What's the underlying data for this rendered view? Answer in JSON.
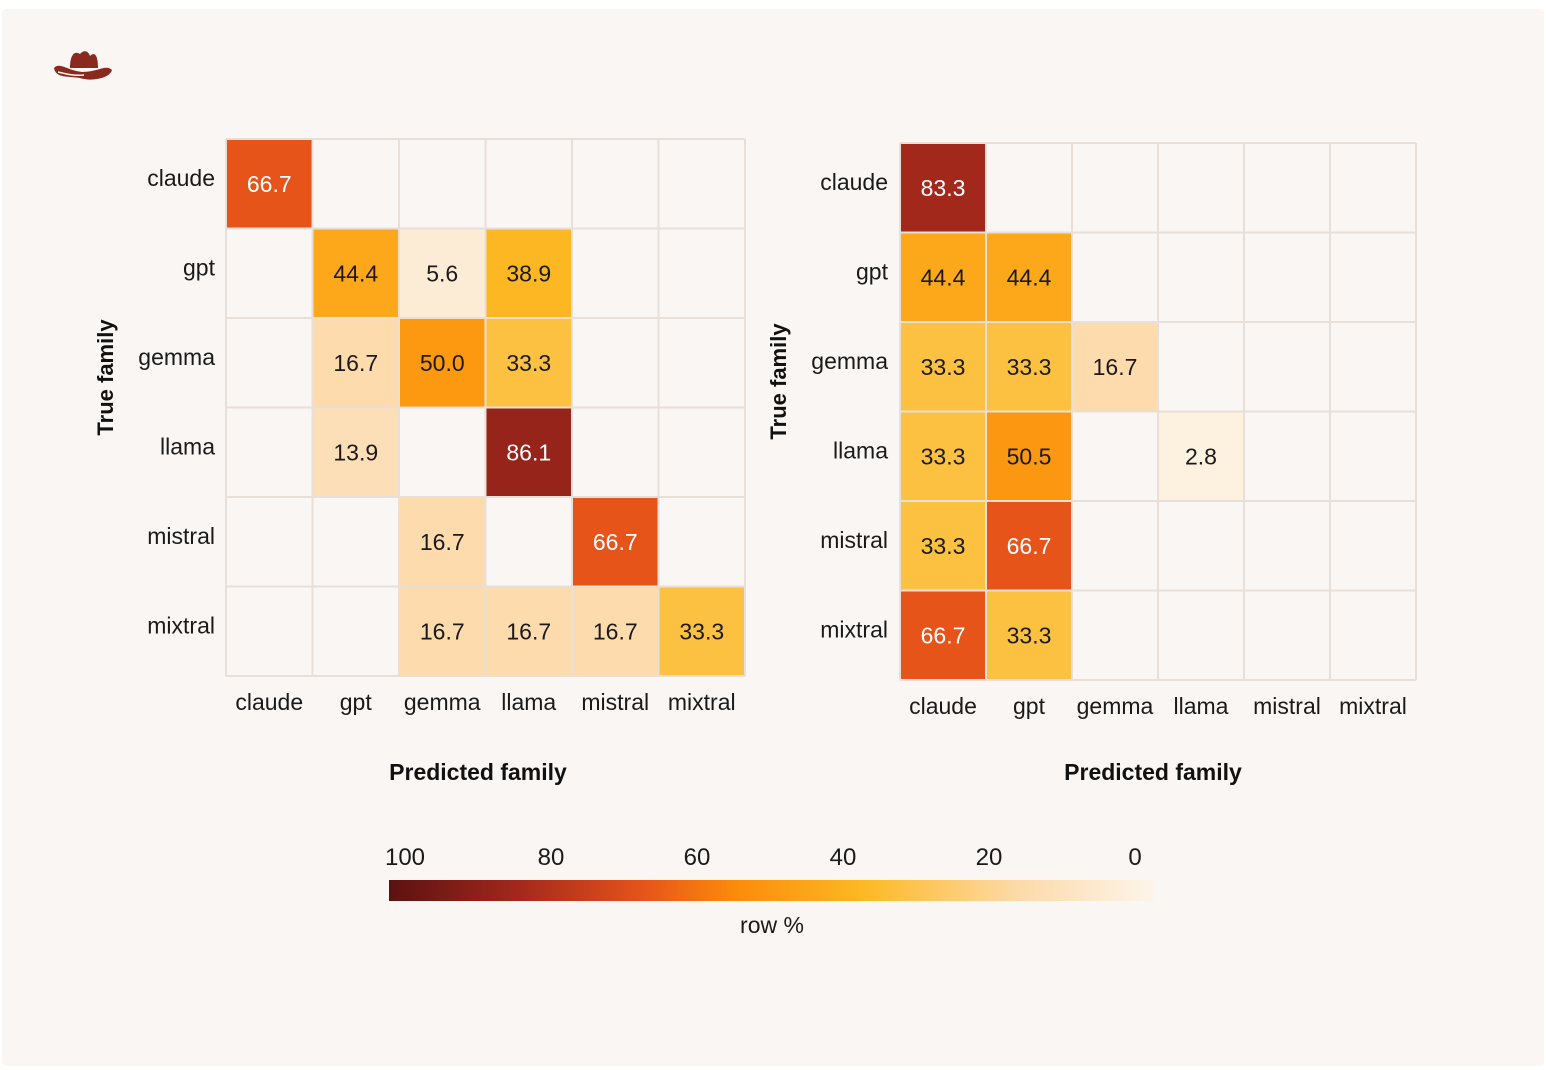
{
  "chart_data": [
    {
      "type": "heatmap",
      "ylabel": "True family",
      "xlabel": "Predicted family",
      "rows": [
        "claude",
        "gpt",
        "gemma",
        "llama",
        "mistral",
        "mixtral"
      ],
      "cols": [
        "claude",
        "gpt",
        "gemma",
        "llama",
        "mistral",
        "mixtral"
      ],
      "values": [
        [
          66.7,
          null,
          null,
          null,
          null,
          null
        ],
        [
          null,
          44.4,
          5.6,
          38.9,
          null,
          null
        ],
        [
          null,
          16.7,
          50.0,
          33.3,
          null,
          null
        ],
        [
          null,
          13.9,
          null,
          86.1,
          null,
          null
        ],
        [
          null,
          null,
          16.7,
          null,
          66.7,
          null
        ],
        [
          null,
          null,
          16.7,
          16.7,
          16.7,
          33.3
        ]
      ],
      "labels": [
        [
          "66.7",
          "",
          "",
          "",
          "",
          ""
        ],
        [
          "",
          "44.4",
          "5.6",
          "38.9",
          "",
          ""
        ],
        [
          "",
          "16.7",
          "50.0",
          "33.3",
          "",
          ""
        ],
        [
          "",
          "13.9",
          "",
          "86.1",
          "",
          ""
        ],
        [
          "",
          "",
          "16.7",
          "",
          "66.7",
          ""
        ],
        [
          "",
          "",
          "16.7",
          "16.7",
          "16.7",
          "33.3"
        ]
      ]
    },
    {
      "type": "heatmap",
      "ylabel": "True family",
      "xlabel": "Predicted family",
      "rows": [
        "claude",
        "gpt",
        "gemma",
        "llama",
        "mistral",
        "mixtral"
      ],
      "cols": [
        "claude",
        "gpt",
        "gemma",
        "llama",
        "mistral",
        "mixtral"
      ],
      "values": [
        [
          83.3,
          null,
          null,
          null,
          null,
          null
        ],
        [
          44.4,
          44.4,
          null,
          null,
          null,
          null
        ],
        [
          33.3,
          33.3,
          16.7,
          null,
          null,
          null
        ],
        [
          33.3,
          50.5,
          null,
          2.8,
          null,
          null
        ],
        [
          33.3,
          66.7,
          null,
          null,
          null,
          null
        ],
        [
          66.7,
          33.3,
          null,
          null,
          null,
          null
        ]
      ],
      "labels": [
        [
          "83.3",
          "",
          "",
          "",
          "",
          ""
        ],
        [
          "44.4",
          "44.4",
          "",
          "",
          "",
          ""
        ],
        [
          "33.3",
          "33.3",
          "16.7",
          "",
          "",
          ""
        ],
        [
          "33.3",
          "50.5",
          "",
          "2.8",
          "",
          ""
        ],
        [
          "33.3",
          "66.7",
          "",
          "",
          "",
          ""
        ],
        [
          "66.7",
          "33.3",
          "",
          "",
          "",
          ""
        ]
      ]
    }
  ],
  "colorbar": {
    "label": "row %",
    "range": [
      0,
      100
    ],
    "ticks": [
      "100",
      "80",
      "60",
      "40",
      "20",
      "0"
    ],
    "stops": [
      "#5c1111",
      "#a3281c",
      "#e5531a",
      "#fb8b0a",
      "#fdb923",
      "#fdd9a8",
      "#fdf5ea"
    ]
  },
  "colors": {
    "background": "#faf6f3",
    "grid": "#e8dfd8",
    "logo": "#8a2a1e"
  },
  "logo_icon": "cowboy-hat-icon"
}
